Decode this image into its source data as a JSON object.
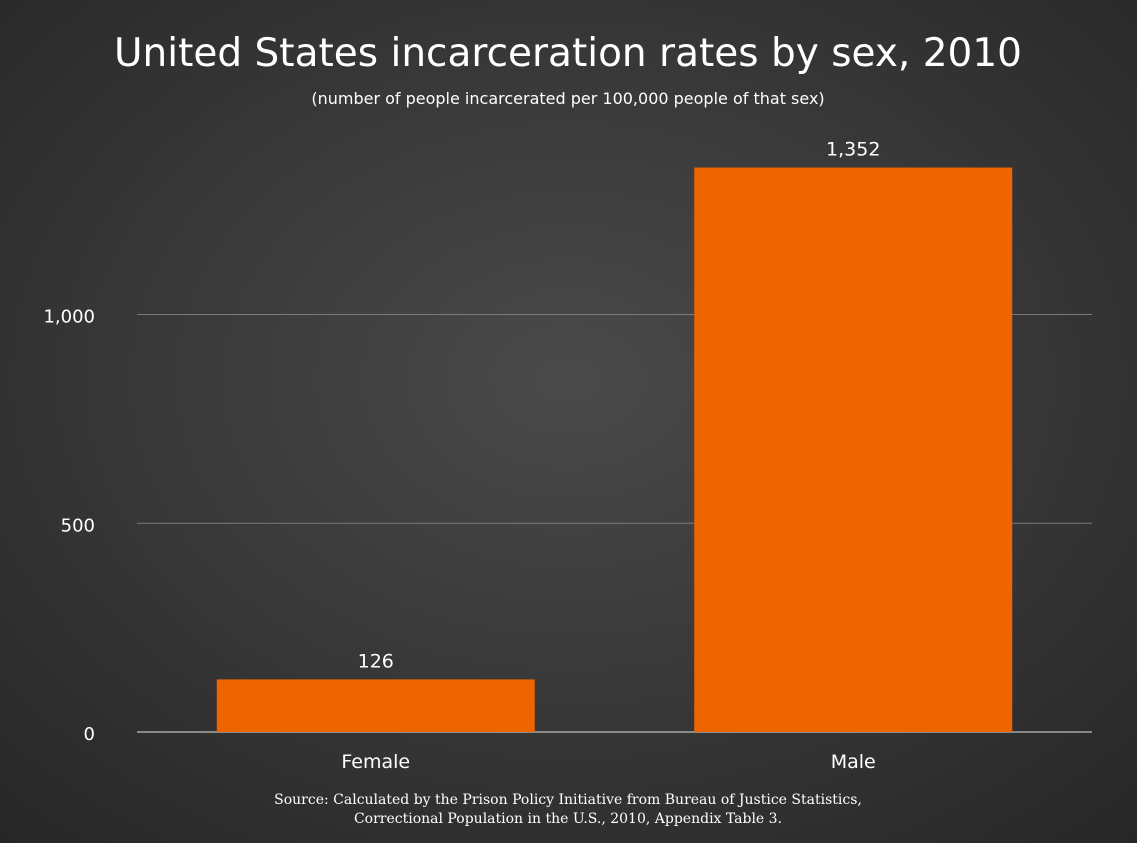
{
  "chart_data": {
    "type": "bar",
    "title": "United States incarceration rates by sex, 2010",
    "subtitle": "(number of people incarcerated per 100,000 people of that sex)",
    "categories": [
      "Female",
      "Male"
    ],
    "values": [
      126,
      1352
    ],
    "value_labels": [
      "126",
      "1,352"
    ],
    "y_ticks": [
      {
        "value": 0,
        "label": "0"
      },
      {
        "value": 500,
        "label": "500"
      },
      {
        "value": 1000,
        "label": "1,000"
      }
    ],
    "ylim": [
      0,
      1352
    ],
    "xlabel": "",
    "ylabel": "",
    "grid": true,
    "legend": "none",
    "source_lines": [
      "Source: Calculated by the Prison Policy Initiative from Bureau of Justice Statistics,",
      "Correctional Population in the U.S., 2010, Appendix Table 3."
    ],
    "colors": {
      "background_center": "#4a4a4a",
      "background_edge": "#262626",
      "bar": "#ee6500",
      "text": "#ffffff",
      "gridline": "#7a7a7a",
      "baseline": "#bfbfbf"
    }
  }
}
